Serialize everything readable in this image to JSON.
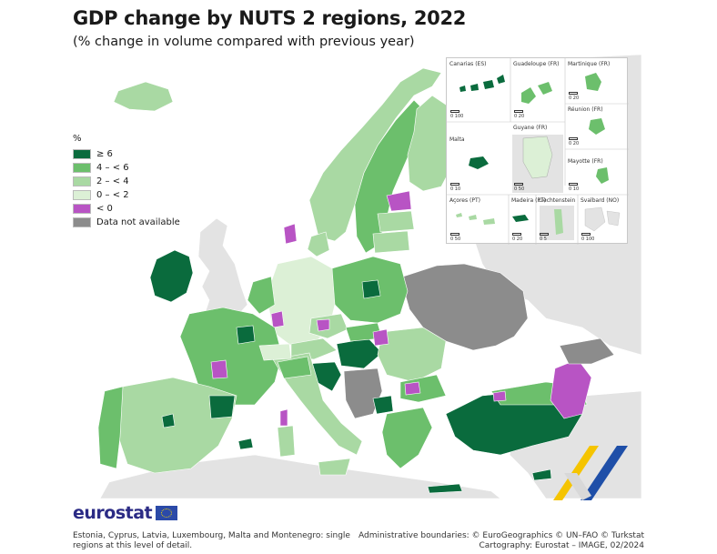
{
  "header": {
    "title": "GDP change by NUTS 2 regions, 2022",
    "subtitle": "(% change in volume compared with previous year)"
  },
  "legend": {
    "unit": "%",
    "classes": [
      {
        "label": "≥ 6",
        "color": "#0a6b3d"
      },
      {
        "label": "4 – < 6",
        "color": "#6cbf6c"
      },
      {
        "label": "2 – < 4",
        "color": "#a9d9a3"
      },
      {
        "label": "0 – < 2",
        "color": "#dcf0d6"
      },
      {
        "label": "< 0",
        "color": "#b854c4"
      },
      {
        "label": "Data not available",
        "color": "#8c8c8c"
      }
    ]
  },
  "colors": {
    "sea": "#ffffff",
    "non_eu_land": "#e3e3e3",
    "border": "#ffffff"
  },
  "insets": [
    {
      "name": "Canarias (ES)",
      "scale": "0   100"
    },
    {
      "name": "Guadeloupe (FR)",
      "scale": "0   20"
    },
    {
      "name": "Martinique (FR)",
      "scale": "0   20"
    },
    {
      "name": "Réunion (FR)",
      "scale": "0   20"
    },
    {
      "name": "Malta",
      "scale": "0   10"
    },
    {
      "name": "Guyane (FR)",
      "scale": "0   50"
    },
    {
      "name": "Mayotte (FR)",
      "scale": "0   10"
    },
    {
      "name": "Açores (PT)",
      "scale": "0   50"
    },
    {
      "name": "Madeira (PT)",
      "scale": "0   20"
    },
    {
      "name": "Liechtenstein",
      "scale": "0   5"
    },
    {
      "name": "Svalbard (NO)",
      "scale": "0   100"
    }
  ],
  "footer": {
    "logo": "eurostat",
    "note": "Estonia, Cyprus, Latvia, Luxembourg, Malta and Montenegro: single regions at this level of detail.",
    "credit_line1": "Administrative boundaries: © EuroGeographics © UN–FAO © Turkstat",
    "credit_line2": "Cartography: Eurostat – IMAGE, 02/2024"
  }
}
